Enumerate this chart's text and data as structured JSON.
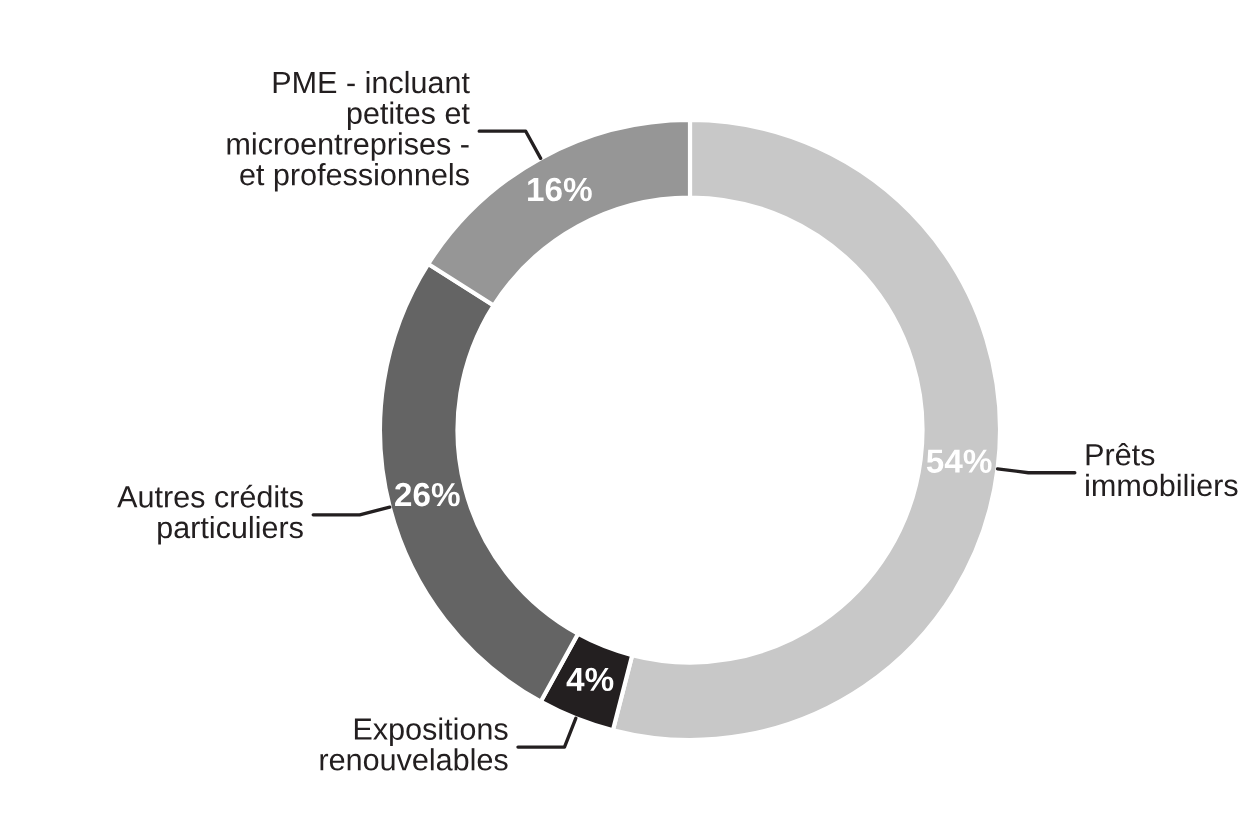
{
  "chart_data": {
    "type": "donut",
    "categories": [
      "Prêts\nimmobiliers",
      "Expositions\nrenouvelables",
      "Autres crédits\nparticuliers",
      "PME - incluant\npetites et\nmicroentreprises -\net professionnels"
    ],
    "values": [
      54,
      4,
      26,
      16
    ],
    "value_labels": [
      "54%",
      "4%",
      "26%",
      "16%"
    ],
    "colors": [
      "#c8c8c8",
      "#231f20",
      "#646464",
      "#969696"
    ],
    "legend": false
  }
}
